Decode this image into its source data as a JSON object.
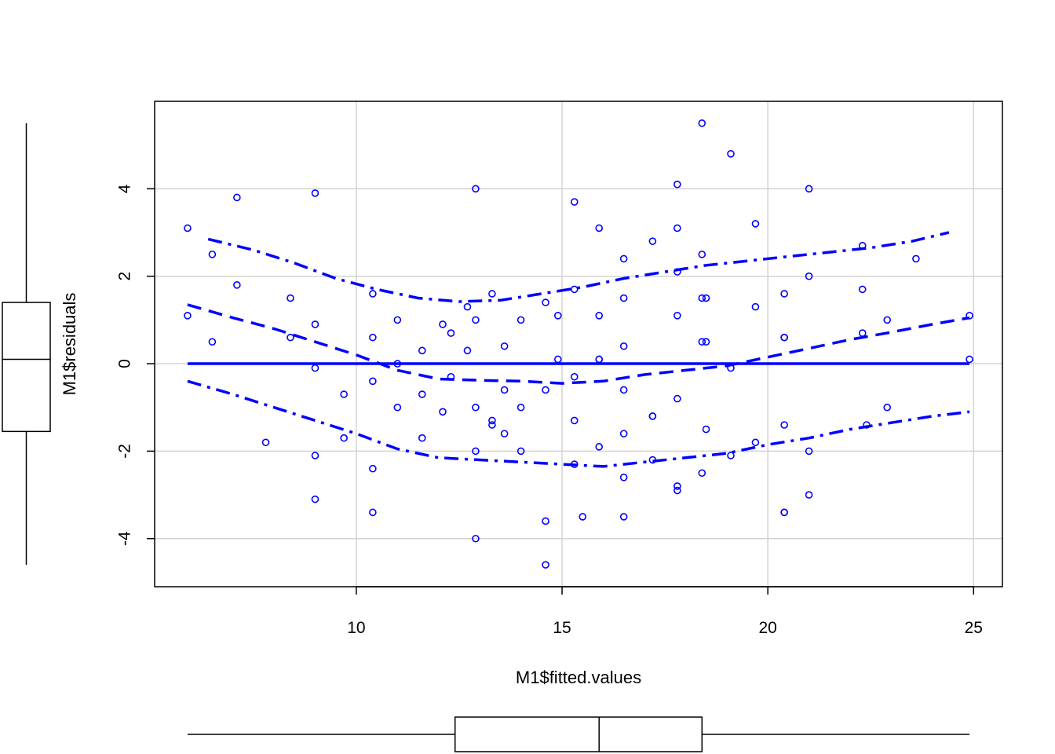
{
  "chart_data": {
    "type": "scatter",
    "title": "",
    "xlabel": "M1$fitted.values",
    "ylabel": "M1$residuals",
    "xlim": [
      5.1,
      25.7
    ],
    "ylim": [
      -5.1,
      6.0
    ],
    "x_ticks": [
      10,
      15,
      20,
      25
    ],
    "y_ticks": [
      -4,
      -2,
      0,
      2,
      4
    ],
    "x_tick_labels": [
      "10",
      "15",
      "20",
      "25"
    ],
    "y_tick_labels": [
      "-4",
      "-2",
      "0",
      "2",
      "4"
    ],
    "grid": true,
    "point_color": "#0000FF",
    "line_color": "#0000FF",
    "points": [
      [
        5.9,
        3.1
      ],
      [
        5.9,
        1.1
      ],
      [
        6.5,
        2.5
      ],
      [
        6.5,
        0.5
      ],
      [
        7.1,
        3.8
      ],
      [
        7.1,
        1.8
      ],
      [
        7.8,
        -1.8
      ],
      [
        8.4,
        1.5
      ],
      [
        8.4,
        0.6
      ],
      [
        9.0,
        3.9
      ],
      [
        9.0,
        0.9
      ],
      [
        9.0,
        -0.1
      ],
      [
        9.0,
        -2.1
      ],
      [
        9.0,
        -3.1
      ],
      [
        9.7,
        -0.7
      ],
      [
        9.7,
        -1.7
      ],
      [
        10.4,
        1.6
      ],
      [
        10.4,
        0.6
      ],
      [
        10.4,
        -0.4
      ],
      [
        10.4,
        -2.4
      ],
      [
        10.4,
        -3.4
      ],
      [
        11.0,
        1.0
      ],
      [
        11.0,
        0.0
      ],
      [
        11.0,
        -1.0
      ],
      [
        11.6,
        0.3
      ],
      [
        11.6,
        -0.7
      ],
      [
        11.6,
        -1.7
      ],
      [
        12.1,
        0.9
      ],
      [
        12.1,
        -1.1
      ],
      [
        12.3,
        0.7
      ],
      [
        12.3,
        -0.3
      ],
      [
        12.7,
        1.3
      ],
      [
        12.7,
        0.3
      ],
      [
        12.9,
        4.0
      ],
      [
        12.9,
        1.0
      ],
      [
        12.9,
        -1.0
      ],
      [
        12.9,
        -2.0
      ],
      [
        12.9,
        -4.0
      ],
      [
        13.3,
        1.6
      ],
      [
        13.3,
        -1.3
      ],
      [
        13.3,
        -1.4
      ],
      [
        13.6,
        0.4
      ],
      [
        13.6,
        -0.6
      ],
      [
        13.6,
        -1.6
      ],
      [
        14.0,
        1.0
      ],
      [
        14.0,
        -1.0
      ],
      [
        14.0,
        -2.0
      ],
      [
        14.6,
        1.4
      ],
      [
        14.6,
        -0.6
      ],
      [
        14.6,
        -3.6
      ],
      [
        14.6,
        -4.6
      ],
      [
        14.9,
        1.1
      ],
      [
        14.9,
        0.1
      ],
      [
        15.3,
        3.7
      ],
      [
        15.3,
        1.7
      ],
      [
        15.3,
        -0.3
      ],
      [
        15.3,
        -1.3
      ],
      [
        15.3,
        -2.3
      ],
      [
        15.5,
        -3.5
      ],
      [
        15.9,
        3.1
      ],
      [
        15.9,
        1.1
      ],
      [
        15.9,
        0.1
      ],
      [
        15.9,
        0.1
      ],
      [
        15.9,
        -1.9
      ],
      [
        16.5,
        2.4
      ],
      [
        16.5,
        1.5
      ],
      [
        16.5,
        0.4
      ],
      [
        16.5,
        -0.6
      ],
      [
        16.5,
        -1.6
      ],
      [
        16.5,
        -2.6
      ],
      [
        16.5,
        -3.5
      ],
      [
        17.2,
        2.8
      ],
      [
        17.2,
        -1.2
      ],
      [
        17.2,
        -1.2
      ],
      [
        17.2,
        -2.2
      ],
      [
        17.8,
        4.1
      ],
      [
        17.8,
        3.1
      ],
      [
        17.8,
        2.1
      ],
      [
        17.8,
        1.1
      ],
      [
        17.8,
        -0.8
      ],
      [
        17.8,
        -2.8
      ],
      [
        17.8,
        -2.9
      ],
      [
        18.4,
        5.5
      ],
      [
        18.4,
        2.5
      ],
      [
        18.4,
        1.5
      ],
      [
        18.4,
        0.5
      ],
      [
        18.5,
        1.5
      ],
      [
        18.5,
        0.5
      ],
      [
        18.5,
        -1.5
      ],
      [
        18.4,
        -2.5
      ],
      [
        19.1,
        4.8
      ],
      [
        19.1,
        -0.1
      ],
      [
        19.1,
        -2.1
      ],
      [
        19.7,
        3.2
      ],
      [
        19.7,
        1.3
      ],
      [
        19.7,
        -1.8
      ],
      [
        20.4,
        1.6
      ],
      [
        20.4,
        0.6
      ],
      [
        20.4,
        0.6
      ],
      [
        20.4,
        -1.4
      ],
      [
        20.4,
        -3.4
      ],
      [
        20.4,
        -3.4
      ],
      [
        21.0,
        4.0
      ],
      [
        21.0,
        2.0
      ],
      [
        21.0,
        -2.0
      ],
      [
        21.0,
        -3.0
      ],
      [
        22.3,
        2.7
      ],
      [
        22.3,
        1.7
      ],
      [
        22.3,
        0.7
      ],
      [
        22.4,
        -1.4
      ],
      [
        22.9,
        1.0
      ],
      [
        22.9,
        -1.0
      ],
      [
        23.6,
        2.4
      ],
      [
        24.9,
        1.1
      ],
      [
        24.9,
        0.1
      ]
    ],
    "zero_line": {
      "x": [
        5.9,
        24.9
      ],
      "y": 0
    },
    "smooth_fit": {
      "x": [
        5.9,
        7.0,
        8.0,
        9.0,
        10.0,
        11.0,
        12.0,
        13.0,
        14.0,
        15.0,
        16.0,
        17.0,
        18.0,
        19.0,
        20.0,
        21.0,
        22.0,
        23.0,
        24.0,
        24.9
      ],
      "y": [
        1.35,
        1.05,
        0.8,
        0.5,
        0.2,
        -0.15,
        -0.35,
        -0.38,
        -0.4,
        -0.45,
        -0.4,
        -0.25,
        -0.15,
        -0.05,
        0.15,
        0.35,
        0.55,
        0.72,
        0.9,
        1.05
      ]
    },
    "upper_band": {
      "x": [
        6.4,
        7.5,
        8.5,
        9.5,
        10.5,
        11.5,
        12.5,
        13.5,
        14.5,
        15.5,
        16.5,
        17.5,
        18.5,
        19.5,
        20.5,
        21.5,
        22.5,
        23.5,
        24.4
      ],
      "y": [
        2.85,
        2.6,
        2.3,
        1.95,
        1.7,
        1.5,
        1.42,
        1.45,
        1.6,
        1.75,
        1.95,
        2.1,
        2.25,
        2.35,
        2.45,
        2.55,
        2.65,
        2.8,
        3.0
      ]
    },
    "lower_band": {
      "x": [
        5.9,
        7.0,
        8.0,
        9.0,
        10.0,
        11.0,
        12.0,
        13.0,
        14.0,
        15.0,
        16.0,
        17.0,
        18.0,
        19.0,
        20.0,
        21.0,
        22.0,
        23.0,
        24.0,
        24.9
      ],
      "y": [
        -0.4,
        -0.7,
        -1.0,
        -1.3,
        -1.6,
        -1.95,
        -2.15,
        -2.2,
        -2.25,
        -2.3,
        -2.35,
        -2.25,
        -2.15,
        -2.05,
        -1.85,
        -1.7,
        -1.5,
        -1.35,
        -1.2,
        -1.1
      ]
    },
    "y_boxplot": {
      "min": -4.6,
      "q1": -1.55,
      "median": 0.1,
      "q3": 1.4,
      "max": 5.5
    },
    "x_boxplot": {
      "min": 5.9,
      "q1": 12.4,
      "median": 15.9,
      "q3": 18.4,
      "max": 24.9
    }
  }
}
